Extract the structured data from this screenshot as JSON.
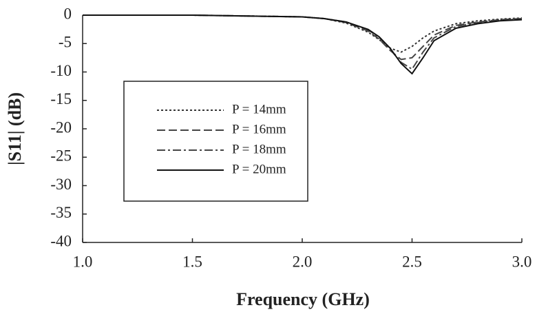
{
  "chart_data": {
    "type": "line",
    "xlabel": "Frequency (GHz)",
    "ylabel": "|S11| (dB)",
    "x": [
      1.0,
      1.5,
      2.0,
      2.1,
      2.2,
      2.3,
      2.35,
      2.4,
      2.45,
      2.5,
      2.55,
      2.6,
      2.7,
      2.8,
      2.9,
      3.0
    ],
    "series": [
      {
        "name": "P = 14mm",
        "color": "#333333",
        "linestyle": "dotted",
        "values": [
          0,
          0,
          -0.3,
          -0.6,
          -1.4,
          -3.0,
          -4.3,
          -5.8,
          -6.5,
          -5.5,
          -4.0,
          -2.8,
          -1.5,
          -1.0,
          -0.7,
          -0.5
        ]
      },
      {
        "name": "P = 16mm",
        "color": "#444444",
        "linestyle": "dashed",
        "values": [
          0,
          0,
          -0.3,
          -0.6,
          -1.3,
          -2.8,
          -4.2,
          -6.2,
          -7.8,
          -7.5,
          -5.5,
          -3.5,
          -1.8,
          -1.2,
          -0.8,
          -0.6
        ]
      },
      {
        "name": "P = 18mm",
        "color": "#444444",
        "linestyle": "dashdot",
        "values": [
          0,
          0,
          -0.3,
          -0.6,
          -1.2,
          -2.6,
          -3.9,
          -6.0,
          -8.3,
          -9.5,
          -6.5,
          -4.0,
          -2.0,
          -1.3,
          -0.9,
          -0.7
        ]
      },
      {
        "name": "P = 20mm",
        "color": "#111111",
        "linestyle": "solid",
        "values": [
          0,
          0,
          -0.3,
          -0.6,
          -1.2,
          -2.5,
          -3.8,
          -5.8,
          -8.5,
          -10.3,
          -7.5,
          -4.5,
          -2.3,
          -1.5,
          -1.0,
          -0.8
        ]
      }
    ],
    "xlim": [
      1.0,
      3.0
    ],
    "xticks": [
      {
        "value": 1,
        "label": "1.0"
      },
      1.5,
      {
        "value": 2,
        "label": "2.0"
      },
      2.5,
      {
        "value": 3,
        "label": "3.0"
      }
    ],
    "ylim": [
      -40,
      0
    ],
    "yticks": [
      0,
      -5,
      -10,
      -15,
      -20,
      -25,
      -30,
      -35,
      -40
    ],
    "grid": false,
    "legend": "center-left"
  }
}
